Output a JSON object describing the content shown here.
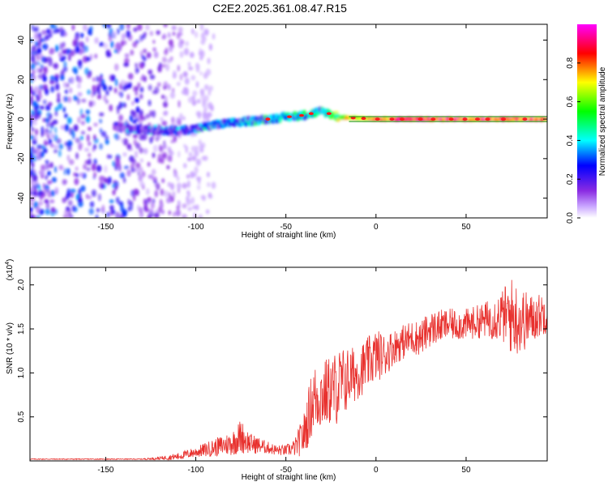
{
  "title": "C2E2.2025.361.08.47.R15",
  "chart_data": [
    {
      "type": "heatmap",
      "name": "spectrogram",
      "xlabel": "Height of straight line (km)",
      "ylabel": "Frequency (Hz)",
      "xlim": [
        -192,
        95
      ],
      "ylim": [
        -50,
        48
      ],
      "xticks": [
        -150,
        -100,
        -50,
        0,
        50
      ],
      "yticks": [
        -40,
        -20,
        0,
        20,
        40
      ],
      "colorbar": {
        "label": "Normalized spectral amplitude",
        "range": [
          0,
          1
        ],
        "ticks": [
          0.0,
          0.2,
          0.4,
          0.6,
          0.8
        ],
        "tick_labels": [
          "0.0",
          "0.2",
          "0.4",
          "0.6",
          "0.8"
        ],
        "colors": [
          "#ffffff",
          "#8a2be2",
          "#0000ff",
          "#00ffff",
          "#00ff00",
          "#ffff00",
          "#ff0000",
          "#ff00ff"
        ]
      },
      "noise_region": {
        "x": [
          -192,
          -110
        ],
        "amplitude": [
          0.05,
          0.35
        ]
      },
      "signal_track": [
        {
          "x": -145,
          "freq": -4,
          "amp": 0.3
        },
        {
          "x": -130,
          "freq": -5,
          "amp": 0.35
        },
        {
          "x": -115,
          "freq": -6,
          "amp": 0.4
        },
        {
          "x": -100,
          "freq": -5,
          "amp": 0.4
        },
        {
          "x": -90,
          "freq": -3,
          "amp": 0.45
        },
        {
          "x": -80,
          "freq": -2,
          "amp": 0.45
        },
        {
          "x": -70,
          "freq": -1,
          "amp": 0.5
        },
        {
          "x": -60,
          "freq": 0,
          "amp": 0.5
        },
        {
          "x": -50,
          "freq": 1,
          "amp": 0.55
        },
        {
          "x": -40,
          "freq": 2,
          "amp": 0.55
        },
        {
          "x": -30,
          "freq": 4,
          "amp": 0.5
        },
        {
          "x": -20,
          "freq": 1,
          "amp": 0.75
        },
        {
          "x": 0,
          "freq": 0,
          "amp": 0.9
        },
        {
          "x": 25,
          "freq": 0,
          "amp": 0.95
        },
        {
          "x": 50,
          "freq": 0,
          "amp": 0.95
        },
        {
          "x": 75,
          "freq": 0,
          "amp": 0.95
        },
        {
          "x": 95,
          "freq": 0,
          "amp": 0.9
        }
      ]
    },
    {
      "type": "line",
      "name": "snr",
      "xlabel": "Height of straight line (km)",
      "ylabel": "SNR (10 * v/v)",
      "y_scale_label": "(x10",
      "y_scale_exponent": "4",
      "xlim": [
        -192,
        95
      ],
      "ylim": [
        0,
        2.2
      ],
      "xticks": [
        -150,
        -100,
        -50,
        0,
        50
      ],
      "yticks": [
        0.5,
        1.0,
        1.5,
        2.0
      ],
      "ytick_labels": [
        "0.5",
        "1.0",
        "1.5",
        "2.0"
      ],
      "color": "#e8312e",
      "envelope": {
        "x": [
          -192,
          -130,
          -120,
          -110,
          -100,
          -90,
          -80,
          -75,
          -70,
          -60,
          -55,
          -50,
          -45,
          -40,
          -35,
          -30,
          -25,
          -20,
          -15,
          -10,
          -5,
          0,
          5,
          10,
          15,
          20,
          25,
          30,
          40,
          50,
          60,
          70,
          75,
          80,
          85,
          90,
          95
        ],
        "mean": [
          0.02,
          0.02,
          0.03,
          0.05,
          0.1,
          0.15,
          0.2,
          0.28,
          0.2,
          0.15,
          0.12,
          0.12,
          0.15,
          0.3,
          0.7,
          0.75,
          0.8,
          0.85,
          0.95,
          1.0,
          1.1,
          1.2,
          1.2,
          1.3,
          1.35,
          1.4,
          1.4,
          1.5,
          1.55,
          1.55,
          1.6,
          1.65,
          1.65,
          1.6,
          1.6,
          1.65,
          1.7
        ],
        "amp": [
          0.005,
          0.005,
          0.02,
          0.04,
          0.06,
          0.1,
          0.14,
          0.2,
          0.12,
          0.07,
          0.06,
          0.06,
          0.1,
          0.25,
          0.4,
          0.4,
          0.4,
          0.45,
          0.35,
          0.3,
          0.3,
          0.3,
          0.25,
          0.2,
          0.2,
          0.2,
          0.2,
          0.2,
          0.18,
          0.18,
          0.2,
          0.3,
          0.45,
          0.4,
          0.3,
          0.25,
          0.25
        ]
      }
    }
  ]
}
